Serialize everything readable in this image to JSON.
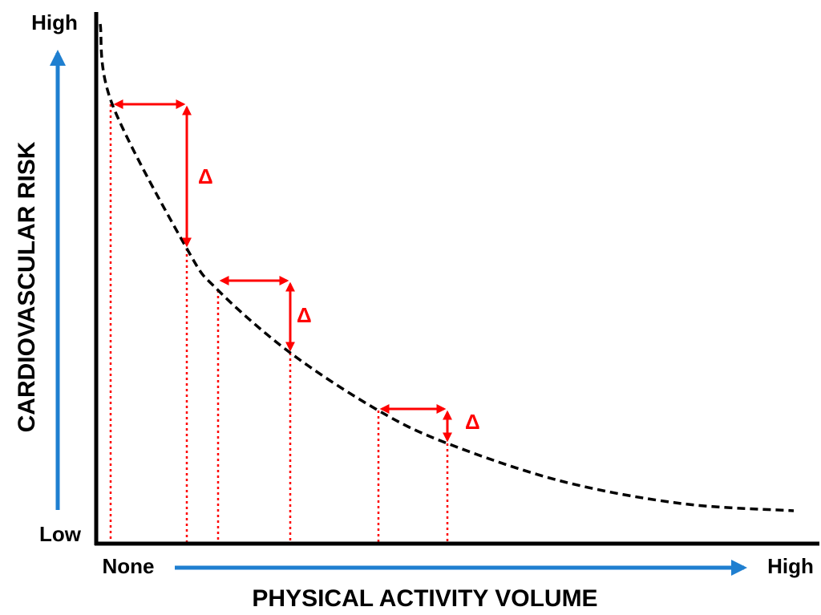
{
  "y_axis": {
    "title": "CARDIOVASCULAR RISK",
    "top_label": "High",
    "bottom_label": "Low"
  },
  "x_axis": {
    "title": "PHYSICAL ACTIVITY VOLUME",
    "start_label": "None",
    "end_label": "High"
  },
  "annotations": [
    "Δ",
    "Δ",
    "Δ"
  ]
}
